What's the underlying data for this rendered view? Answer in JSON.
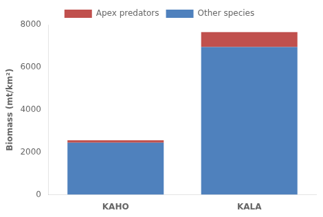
{
  "chart_data": {
    "type": "bar",
    "stacked": true,
    "categories": [
      "KAHO",
      "KALA"
    ],
    "series": [
      {
        "name": "Other species",
        "color": "#4F81BD",
        "values": [
          2450,
          6950
        ]
      },
      {
        "name": "Apex predators",
        "color": "#C0504D",
        "values": [
          110,
          700
        ]
      }
    ],
    "ylabel": "Biomass (mt/km²)",
    "ylim": [
      0,
      8000
    ],
    "yticks": [
      0,
      2000,
      4000,
      6000,
      8000
    ],
    "grid": false,
    "legend": "top"
  }
}
